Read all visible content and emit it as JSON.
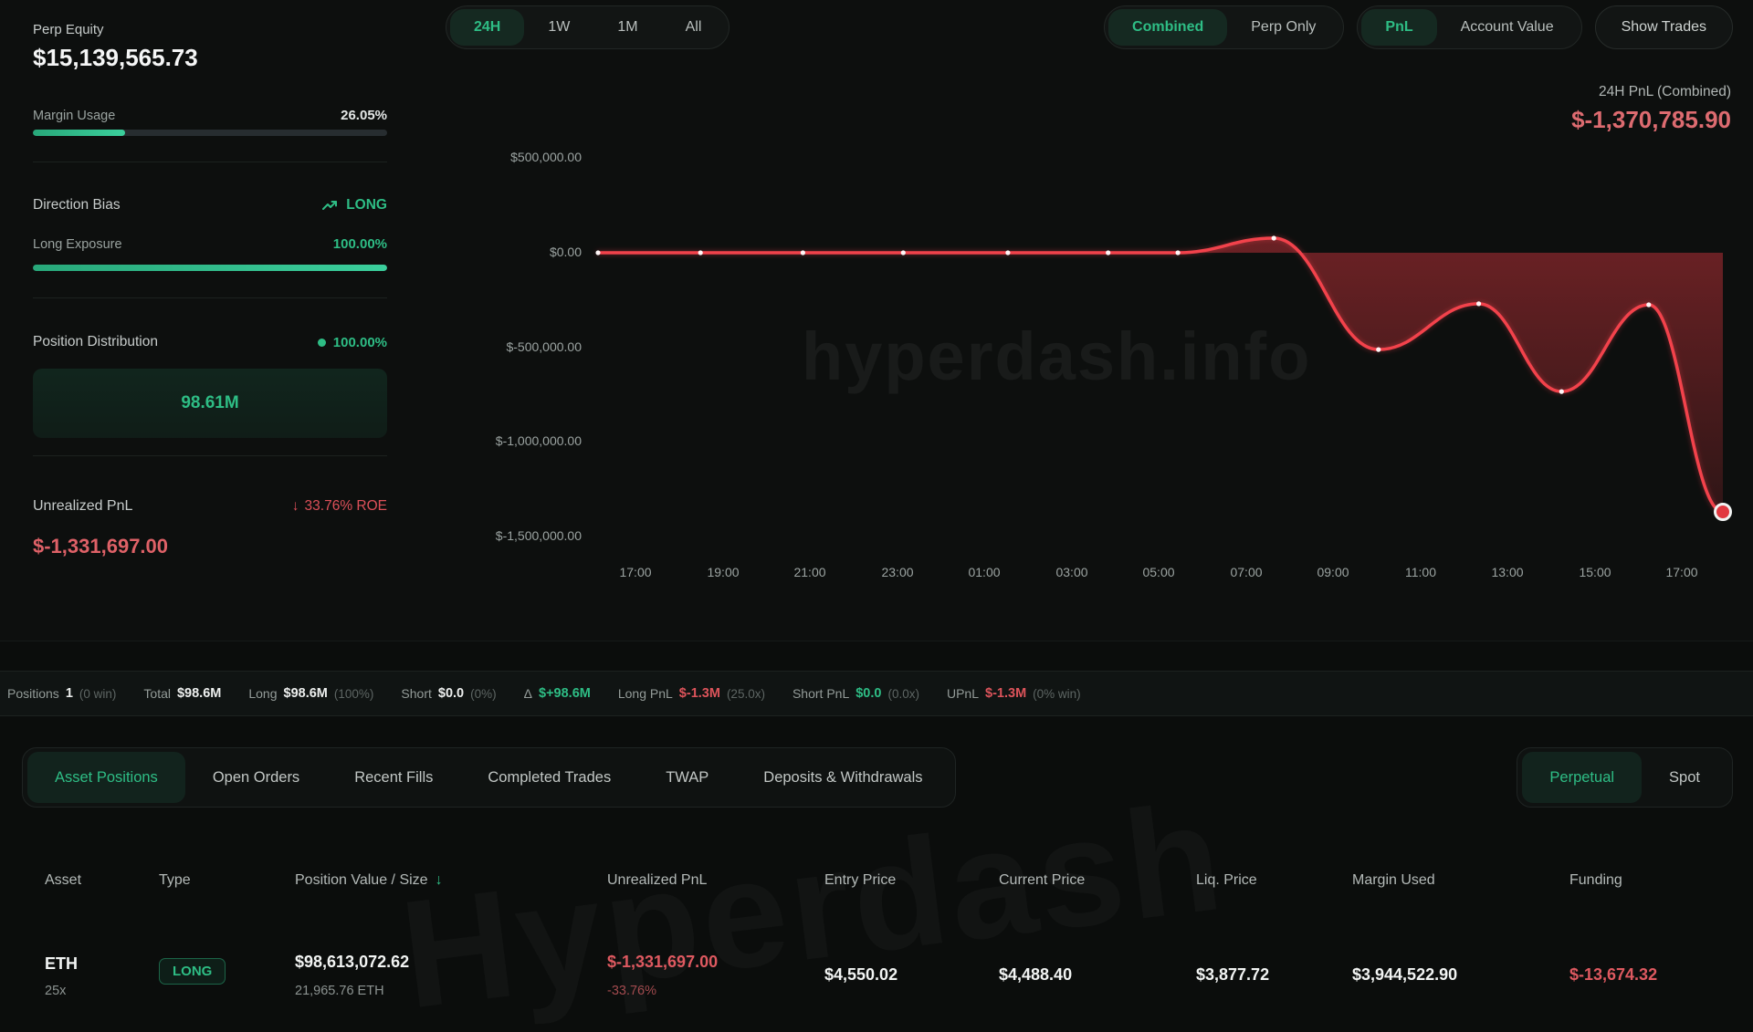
{
  "watermarks": {
    "chart": "hyperdash.info",
    "bottom": "Hyperdash"
  },
  "sidebar": {
    "perp_equity": {
      "label": "Perp Equity",
      "value": "$15,139,565.73"
    },
    "margin_usage": {
      "label": "Margin Usage",
      "value": "26.05%",
      "percent": 26.05
    },
    "direction_bias": {
      "label": "Direction Bias",
      "value": "LONG"
    },
    "long_exposure": {
      "label": "Long Exposure",
      "value": "100.00%",
      "percent": 100
    },
    "position_distribution": {
      "label": "Position Distribution",
      "value": "100.00%",
      "bar_label": "98.61M"
    },
    "unrealized_pnl": {
      "label": "Unrealized PnL",
      "roe_arrow": "↓",
      "roe": "33.76% ROE",
      "value": "$-1,331,697.00"
    }
  },
  "chart_controls": {
    "timeframes": [
      "24H",
      "1W",
      "1M",
      "All"
    ],
    "timeframe_active": "24H",
    "mode_options": [
      "Combined",
      "Perp Only"
    ],
    "mode_active": "Combined",
    "metric_options": [
      "PnL",
      "Account Value"
    ],
    "metric_active": "PnL",
    "show_trades": "Show Trades"
  },
  "chart_header": {
    "label": "24H PnL (Combined)",
    "value": "$-1,370,785.90"
  },
  "chart_data": {
    "type": "area",
    "title": "24H PnL (Combined)",
    "series_name": "PnL (USD)",
    "line_color": "#f2424c",
    "fill_color": "#e73942",
    "ylim": [
      -1500000,
      500000
    ],
    "grid": false,
    "legend": "none",
    "y_ticks": [
      {
        "label": "$500,000.00",
        "v": 500000
      },
      {
        "label": "$0.00",
        "v": 0
      },
      {
        "label": "$-500,000.00",
        "v": -500000
      },
      {
        "label": "$-1,000,000.00",
        "v": -1000000
      },
      {
        "label": "$-1,500,000.00",
        "v": -1500000
      }
    ],
    "x_ticks": [
      {
        "label": "17:00",
        "t": 0.86
      },
      {
        "label": "19:00",
        "t": 2.86
      },
      {
        "label": "21:00",
        "t": 4.86
      },
      {
        "label": "23:00",
        "t": 6.86
      },
      {
        "label": "01:00",
        "t": 8.86
      },
      {
        "label": "03:00",
        "t": 10.86
      },
      {
        "label": "05:00",
        "t": 12.86
      },
      {
        "label": "07:00",
        "t": 14.86
      },
      {
        "label": "09:00",
        "t": 16.86
      },
      {
        "label": "11:00",
        "t": 18.86
      },
      {
        "label": "13:00",
        "t": 20.86
      },
      {
        "label": "15:00",
        "t": 22.86
      },
      {
        "label": "17:00",
        "t": 24.86
      }
    ],
    "t_range": [
      0,
      25.8
    ],
    "points": [
      {
        "t": 0.0,
        "v": 0
      },
      {
        "t": 2.35,
        "v": 0
      },
      {
        "t": 4.7,
        "v": 0
      },
      {
        "t": 7.0,
        "v": 0
      },
      {
        "t": 9.4,
        "v": 0
      },
      {
        "t": 11.7,
        "v": 0
      },
      {
        "t": 13.3,
        "v": 0
      },
      {
        "t": 15.5,
        "v": 77000
      },
      {
        "t": 17.9,
        "v": -512000
      },
      {
        "t": 20.2,
        "v": -270000
      },
      {
        "t": 22.1,
        "v": -734000
      },
      {
        "t": 24.1,
        "v": -275000
      },
      {
        "t": 25.8,
        "v": -1370786
      }
    ],
    "final_value_label": "$-1,370,785.90"
  },
  "summary": {
    "items": [
      {
        "label": "Positions",
        "value": "1",
        "suffix": "(0 win)",
        "color": "white"
      },
      {
        "label": "Total",
        "value": "$98.6M",
        "suffix": "",
        "color": "white"
      },
      {
        "label": "Long",
        "value": "$98.6M",
        "suffix": "(100%)",
        "color": "white"
      },
      {
        "label": "Short",
        "value": "$0.0",
        "suffix": "(0%)",
        "color": "white"
      },
      {
        "label": "Δ",
        "value": "$+98.6M",
        "suffix": "",
        "color": "green"
      },
      {
        "label": "Long PnL",
        "value": "$-1.3M",
        "suffix": "(25.0x)",
        "color": "red"
      },
      {
        "label": "Short PnL",
        "value": "$0.0",
        "suffix": "(0.0x)",
        "color": "green"
      },
      {
        "label": "UPnL",
        "value": "$-1.3M",
        "suffix": "(0% win)",
        "color": "red"
      }
    ]
  },
  "tabs": {
    "items": [
      "Asset Positions",
      "Open Orders",
      "Recent Fills",
      "Completed Trades",
      "TWAP",
      "Deposits & Withdrawals"
    ],
    "active": "Asset Positions",
    "market_options": [
      "Perpetual",
      "Spot"
    ],
    "market_active": "Perpetual"
  },
  "table": {
    "headers": [
      "Asset",
      "Type",
      "Position Value / Size",
      "Unrealized PnL",
      "Entry Price",
      "Current Price",
      "Liq. Price",
      "Margin Used",
      "Funding"
    ],
    "sort_arrow": "↓",
    "row": {
      "asset": "ETH",
      "leverage": "25x",
      "type": "LONG",
      "position_value": "$98,613,072.62",
      "position_size": "21,965.76 ETH",
      "unrealized_pnl": "$-1,331,697.00",
      "unrealized_pnl_pct": "-33.76%",
      "entry_price": "$4,550.02",
      "current_price": "$4,488.40",
      "liq_price": "$3,877.72",
      "margin_used": "$3,944,522.90",
      "funding": "$-13,674.32"
    }
  },
  "colors": {
    "accent_green": "#2ebd85",
    "accent_red": "#dd545b",
    "line_red": "#f2424c",
    "background": "#0b0d0c"
  }
}
